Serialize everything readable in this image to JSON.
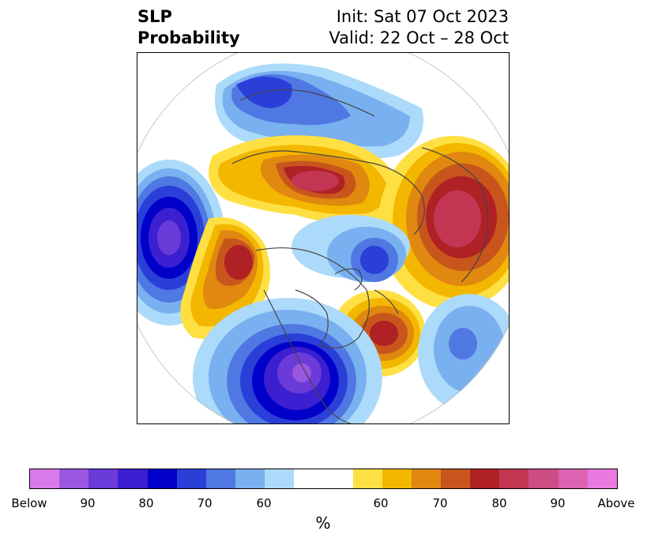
{
  "title": {
    "left_line1": "SLP",
    "left_line2": "Probability",
    "right_line1": "Init: Sat 07 Oct 2023",
    "right_line2": "Valid: 22 Oct – 28 Oct"
  },
  "colorbar": {
    "colors": [
      "#d87ae8",
      "#9b57e0",
      "#6a3bd8",
      "#3b1fd0",
      "#0000c8",
      "#2a3fd8",
      "#4f78e3",
      "#79b0ef",
      "#acdafa",
      "#ffffff",
      "#ffffff",
      "#ffe043",
      "#f3b700",
      "#e08810",
      "#c8561c",
      "#b02125",
      "#c23654",
      "#cd4e82",
      "#dd62b3",
      "#e87ae0"
    ],
    "tick_labels": [
      "Below",
      "90",
      "80",
      "70",
      "60",
      "60",
      "70",
      "80",
      "90",
      "Above"
    ],
    "unit_label": "%"
  },
  "map": {
    "projection": "polar-stereographic",
    "region": "Northern Hemisphere"
  }
}
